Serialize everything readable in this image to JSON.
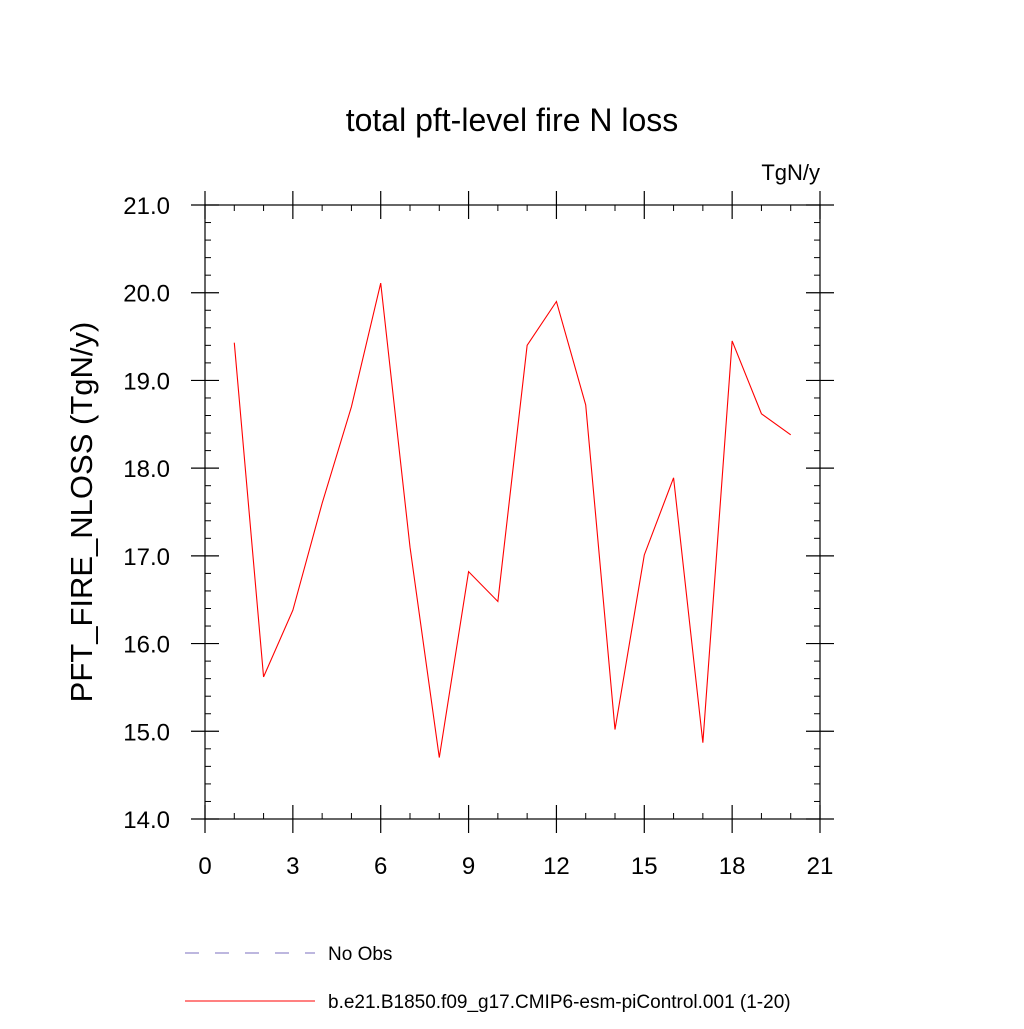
{
  "chart_data": {
    "type": "line",
    "title": "total pft-level fire N loss",
    "units_label": "TgN/y",
    "xlabel": "",
    "ylabel": "PFT_FIRE_NLOSS  (TgN/y)",
    "xlim": [
      0,
      21
    ],
    "ylim": [
      14.0,
      21.0
    ],
    "x_ticks": [
      0,
      3,
      6,
      9,
      12,
      15,
      18,
      21
    ],
    "x_tick_labels": [
      "0",
      "3",
      "6",
      "9",
      "12",
      "15",
      "18",
      "21"
    ],
    "y_ticks": [
      14.0,
      15.0,
      16.0,
      17.0,
      18.0,
      19.0,
      20.0,
      21.0
    ],
    "y_tick_labels": [
      "14.0",
      "15.0",
      "16.0",
      "17.0",
      "18.0",
      "19.0",
      "20.0",
      "21.0"
    ],
    "grid": false,
    "series": [
      {
        "name": "b.e21.B1850.f09_g17.CMIP6-esm-piControl.001 (1-20)",
        "color": "#ff0000",
        "style": "solid",
        "x": [
          1,
          2,
          3,
          4,
          5,
          6,
          7,
          8,
          9,
          10,
          11,
          12,
          13,
          14,
          15,
          16,
          17,
          18,
          19,
          20
        ],
        "values": [
          19.43,
          15.62,
          16.38,
          17.6,
          18.7,
          20.11,
          17.1,
          14.7,
          16.82,
          16.48,
          19.4,
          19.9,
          18.72,
          15.02,
          17.01,
          17.89,
          14.87,
          19.45,
          18.62,
          18.38
        ]
      }
    ],
    "legend": [
      {
        "label": "No Obs",
        "color": "#7b6fbf",
        "style": "dashed"
      },
      {
        "label": "b.e21.B1850.f09_g17.CMIP6-esm-piControl.001 (1-20)",
        "color": "#ff0000",
        "style": "solid"
      }
    ],
    "legend_position": "bottom"
  }
}
